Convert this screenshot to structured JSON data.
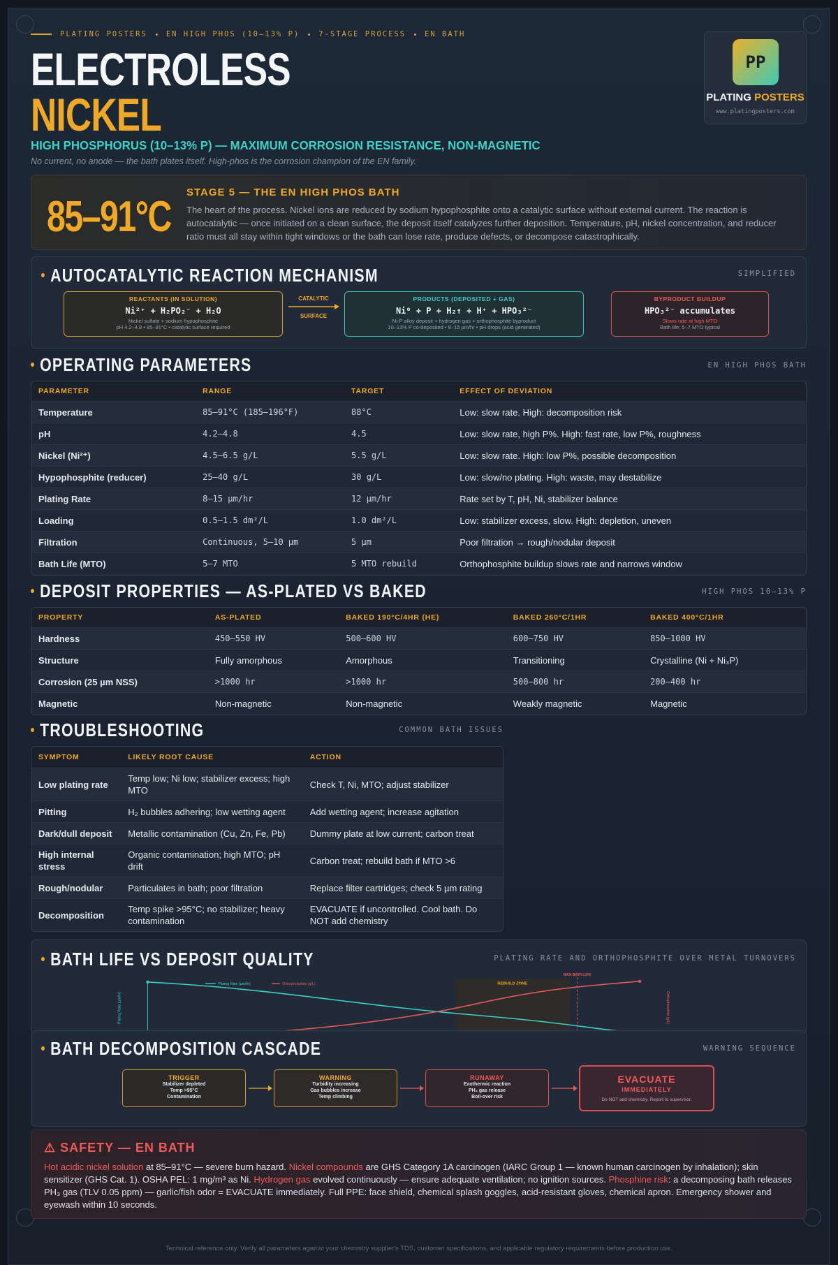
{
  "header": {
    "eyebrow": [
      "PLATING POSTERS",
      "EN HIGH PHOS (10–13% P)",
      "7-STAGE PROCESS",
      "EN BATH"
    ],
    "title1": "ELECTROLESS",
    "title2": "NICKEL",
    "subtitle": "HIGH PHOSPHORUS (10–13% P) — MAXIMUM CORROSION RESISTANCE, NON-MAGNETIC",
    "tagline": "No current, no anode — the bath plates itself. High-phos is the corrosion champion of the EN family."
  },
  "logo": {
    "mark": "PP",
    "name1": "PLATING",
    "name2": "POSTERS",
    "url": "www.platingposters.com"
  },
  "stage": {
    "temp": "85–91°C",
    "heading": "STAGE 5 — THE EN HIGH PHOS BATH",
    "body": "The heart of the process. Nickel ions are reduced by sodium hypophosphite onto a catalytic surface without external current. The reaction is autocatalytic — once initiated on a clean surface, the deposit itself catalyzes further deposition. Temperature, pH, nickel concentration, and reducer ratio must all stay within tight windows or the bath can lose rate, produce defects, or decompose catastrophically."
  },
  "mechanism": {
    "title": "AUTOCATALYTIC REACTION MECHANISM",
    "tag": "SIMPLIFIED",
    "reactants": {
      "label": "REACTANTS (IN SOLUTION)",
      "formula": "Ni²⁺ + H₂PO₂⁻ + H₂O",
      "note1": "Nickel sulfate + sodium hypophosphite",
      "note2": "pH 4.2–4.8 • 85–91°C • catalytic surface required"
    },
    "arrow": {
      "top": "CATALYTIC",
      "bottom": "SURFACE"
    },
    "products": {
      "label": "PRODUCTS (DEPOSITED + GAS)",
      "formula": "Ni⁰ + P + H₂↑ + H⁺ + HPO₃²⁻",
      "note1": "Ni-P alloy deposit + hydrogen gas + orthophosphite byproduct",
      "note2": "10–13% P co-deposited • 8–15 µm/hr • pH drops (acid generated)"
    },
    "byproduct": {
      "label": "BYPRODUCT BUILDUP",
      "formula": "HPO₃²⁻ accumulates",
      "note1": "Slows rate at high MTO",
      "note2": "Bath life: 5–7 MTO typical"
    }
  },
  "parameters": {
    "title": "OPERATING PARAMETERS",
    "tag": "EN HIGH PHOS BATH",
    "headers": [
      "PARAMETER",
      "RANGE",
      "TARGET",
      "EFFECT OF DEVIATION"
    ],
    "rows": [
      [
        "Temperature",
        "85–91°C (185–196°F)",
        "88°C",
        "Low: slow rate. High: decomposition risk"
      ],
      [
        "pH",
        "4.2–4.8",
        "4.5",
        "Low: slow rate, high P%. High: fast rate, low P%, roughness"
      ],
      [
        "Nickel (Ni²⁺)",
        "4.5–6.5 g/L",
        "5.5 g/L",
        "Low: slow rate. High: low P%, possible decomposition"
      ],
      [
        "Hypophosphite (reducer)",
        "25–40 g/L",
        "30 g/L",
        "Low: slow/no plating. High: waste, may destabilize"
      ],
      [
        "Plating Rate",
        "8–15 µm/hr",
        "12 µm/hr",
        "Rate set by T, pH, Ni, stabilizer balance"
      ],
      [
        "Loading",
        "0.5–1.5 dm²/L",
        "1.0 dm²/L",
        "Low: stabilizer excess, slow. High: depletion, uneven"
      ],
      [
        "Filtration",
        "Continuous, 5–10 µm",
        "5 µm",
        "Poor filtration → rough/nodular deposit"
      ],
      [
        "Bath Life (MTO)",
        "5–7 MTO",
        "5 MTO rebuild",
        "Orthophosphite buildup slows rate and narrows window"
      ]
    ]
  },
  "deposit": {
    "title": "DEPOSIT PROPERTIES — AS-PLATED VS BAKED",
    "tag": "HIGH PHOS 10–13% P",
    "headers": [
      "PROPERTY",
      "AS-PLATED",
      "BAKED 190°C/4HR (HE)",
      "BAKED 260°C/1HR",
      "BAKED 400°C/1HR"
    ],
    "rows": [
      [
        "Hardness",
        "450–550 HV",
        "500–600 HV",
        "600–750 HV",
        "850–1000 HV"
      ],
      [
        "Structure",
        "Fully amorphous",
        "Amorphous",
        "Transitioning",
        "Crystalline (Ni + Ni₃P)"
      ],
      [
        "Corrosion (25 µm NSS)",
        ">1000 hr",
        ">1000 hr",
        "500–800 hr",
        "200–400 hr"
      ],
      [
        "Magnetic",
        "Non-magnetic",
        "Non-magnetic",
        "Weakly magnetic",
        "Magnetic"
      ]
    ]
  },
  "troubleshooting": {
    "title": "TROUBLESHOOTING",
    "tag": "COMMON BATH ISSUES",
    "headers": [
      "SYMPTOM",
      "LIKELY ROOT CAUSE",
      "ACTION"
    ],
    "rows": [
      [
        "Low plating rate",
        "Temp low; Ni low; stabilizer excess; high MTO",
        "Check T, Ni, MTO; adjust stabilizer"
      ],
      [
        "Pitting",
        "H₂ bubbles adhering; low wetting agent",
        "Add wetting agent; increase agitation"
      ],
      [
        "Dark/dull deposit",
        "Metallic contamination (Cu, Zn, Fe, Pb)",
        "Dummy plate at low current; carbon treat"
      ],
      [
        "High internal stress",
        "Organic contamination; high MTO; pH drift",
        "Carbon treat; rebuild bath if MTO >6"
      ],
      [
        "Rough/nodular",
        "Particulates in bath; poor filtration",
        "Replace filter cartridges; check 5 µm rating"
      ],
      [
        "Decomposition",
        "Temp spike >95°C; no stabilizer; heavy contamination",
        "EVACUATE if uncontrolled. Cool bath. Do NOT add chemistry"
      ]
    ]
  },
  "bath_life": {
    "title": "BATH LIFE VS DEPOSIT QUALITY",
    "tag": "PLATING RATE AND ORTHOPHOSPHITE OVER METAL TURNOVERS",
    "legend": [
      "Plating Rate (µm/hr)",
      "Orthophosphite (g/L)"
    ],
    "y_left": "Plating Rate (µm/hr)",
    "y_right": "Orthophosphite (g/L)",
    "zone": "REBUILD ZONE",
    "marker": "MAX BATH LIFE"
  },
  "cascade": {
    "title": "BATH DECOMPOSITION CASCADE",
    "tag": "WARNING SEQUENCE",
    "steps": [
      {
        "label": "TRIGGER",
        "lines": [
          "Stabilizer depleted",
          "Temp >95°C",
          "Contamination"
        ]
      },
      {
        "label": "WARNING",
        "lines": [
          "Turbidity increasing",
          "Gas bubbles increase",
          "Temp climbing"
        ]
      },
      {
        "label": "RUNAWAY",
        "lines": [
          "Exothermic reaction",
          "PH₃ gas release",
          "Boil-over risk"
        ]
      }
    ],
    "final": {
      "title": "EVACUATE",
      "sub": "IMMEDIATELY",
      "note": "Do NOT add chemistry. Report to supervisor."
    }
  },
  "safety": {
    "title": "⚠ SAFETY — EN BATH",
    "segments": [
      {
        "text": "Hot acidic nickel solution",
        "highlight": true
      },
      {
        "text": " at 85–91°C — severe burn hazard. ",
        "highlight": false
      },
      {
        "text": "Nickel compounds",
        "highlight": true
      },
      {
        "text": " are GHS Category 1A carcinogen (IARC Group 1 — known human carcinogen by inhalation); skin sensitizer (GHS Cat. 1). OSHA PEL: 1 mg/m³ as Ni. ",
        "highlight": false
      },
      {
        "text": "Hydrogen gas",
        "highlight": true
      },
      {
        "text": " evolved continuously — ensure adequate ventilation; no ignition sources. ",
        "highlight": false
      },
      {
        "text": "Phosphine risk",
        "highlight": true
      },
      {
        "text": ": a decomposing bath releases PH₃ gas (TLV 0.05 ppm) — garlic/fish odor = EVACUATE immediately. Full PPE: face shield, chemical splash goggles, acid-resistant gloves, chemical apron. Emergency shower and eyewash within 10 seconds.",
        "highlight": false
      }
    ]
  },
  "footer": "Technical reference only. Verify all parameters against your chemistry supplier's TDS, customer specifications, and applicable regulatory requirements before production use."
}
